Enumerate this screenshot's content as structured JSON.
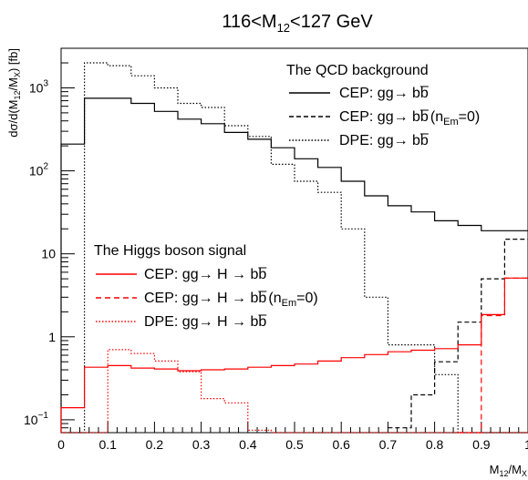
{
  "chart_data": {
    "type": "line",
    "title": {
      "base": "116<M",
      "sub": "12",
      "tail": "<127 GeV"
    },
    "xlabel": {
      "m": "M",
      "s1": "12",
      "slash": "/M",
      "s2": "X"
    },
    "ylabel": {
      "a": "dσ/d(M",
      "s1": "12",
      "b": "/M",
      "s2": "X",
      "c": ") [fb]"
    },
    "xlim": [
      0,
      1
    ],
    "ylim": [
      0.07,
      3000
    ],
    "y_scale": "log",
    "x_ticks": [
      "0",
      "0.1",
      "0.2",
      "0.3",
      "0.4",
      "0.5",
      "0.6",
      "0.7",
      "0.8",
      "0.9",
      "1"
    ],
    "y_ticks": [
      {
        "value": 0.1,
        "base": "10",
        "exp": "−1"
      },
      {
        "value": 1,
        "base": "1",
        "exp": ""
      },
      {
        "value": 10,
        "base": "10",
        "exp": ""
      },
      {
        "value": 100,
        "base": "10",
        "exp": "2"
      },
      {
        "value": 1000,
        "base": "10",
        "exp": "3"
      }
    ],
    "bin_edges": [
      0,
      0.05,
      0.1,
      0.15,
      0.2,
      0.25,
      0.3,
      0.35,
      0.4,
      0.45,
      0.5,
      0.55,
      0.6,
      0.65,
      0.7,
      0.75,
      0.8,
      0.85,
      0.9,
      0.95,
      1.0
    ],
    "series": [
      {
        "group": "qcd",
        "color": "#000000",
        "dash": "",
        "width": 1.2,
        "values": [
          210,
          750,
          750,
          650,
          520,
          420,
          370,
          290,
          240,
          190,
          140,
          110,
          75,
          50,
          38,
          32,
          25,
          22,
          19,
          19
        ]
      },
      {
        "group": "qcd",
        "color": "#000000",
        "dash": "5,3",
        "width": 1.2,
        "values": [
          null,
          null,
          null,
          null,
          null,
          null,
          null,
          null,
          null,
          null,
          null,
          null,
          null,
          null,
          0.08,
          0.2,
          0.5,
          1.5,
          5,
          15
        ]
      },
      {
        "group": "qcd",
        "color": "#000000",
        "dash": "1.5,2",
        "width": 1.2,
        "values": [
          0.06,
          2000,
          1850,
          1400,
          1000,
          650,
          580,
          350,
          260,
          120,
          75,
          55,
          20,
          3,
          0.8,
          0.8,
          0.35,
          0.06,
          0.06,
          0.06
        ]
      },
      {
        "group": "higgs",
        "color": "#ff0000",
        "dash": "",
        "width": 1.2,
        "values": [
          0.14,
          0.43,
          0.45,
          0.42,
          0.41,
          0.39,
          0.4,
          0.41,
          0.43,
          0.45,
          0.47,
          0.51,
          0.56,
          0.61,
          0.66,
          0.69,
          0.72,
          0.8,
          1.85,
          5.1
        ]
      },
      {
        "group": "higgs",
        "color": "#ff0000",
        "dash": "6,4",
        "width": 1.2,
        "values": [
          null,
          null,
          null,
          null,
          null,
          null,
          null,
          null,
          null,
          null,
          null,
          null,
          null,
          null,
          null,
          null,
          null,
          0.035,
          1.8,
          5.1
        ]
      },
      {
        "group": "higgs",
        "color": "#ff0000",
        "dash": "1.5,2",
        "width": 1.2,
        "values": [
          0.06,
          0.06,
          0.7,
          0.63,
          0.51,
          0.38,
          0.18,
          0.16,
          0.075,
          0.06,
          0.06,
          0.06,
          0.06,
          0.06,
          0.06,
          0.06,
          0.06,
          0.06,
          0.06,
          0.06
        ]
      }
    ],
    "legend": [
      {
        "header": "The QCD background",
        "entries": [
          {
            "label": "CEP: gg→ bb",
            "extra": ""
          },
          {
            "label": "CEP: gg→ bb",
            "extra": " (n_Em=0)"
          },
          {
            "label": "DPE: gg→ bb",
            "extra": ""
          }
        ]
      },
      {
        "header": "The Higgs boson signal",
        "entries": [
          {
            "label": "CEP: gg→ H → bb",
            "extra": ""
          },
          {
            "label": "CEP: gg→ H → bb",
            "extra": " (n_Em=0)"
          },
          {
            "label": "DPE: gg→ H → bb",
            "extra": ""
          }
        ]
      }
    ]
  }
}
